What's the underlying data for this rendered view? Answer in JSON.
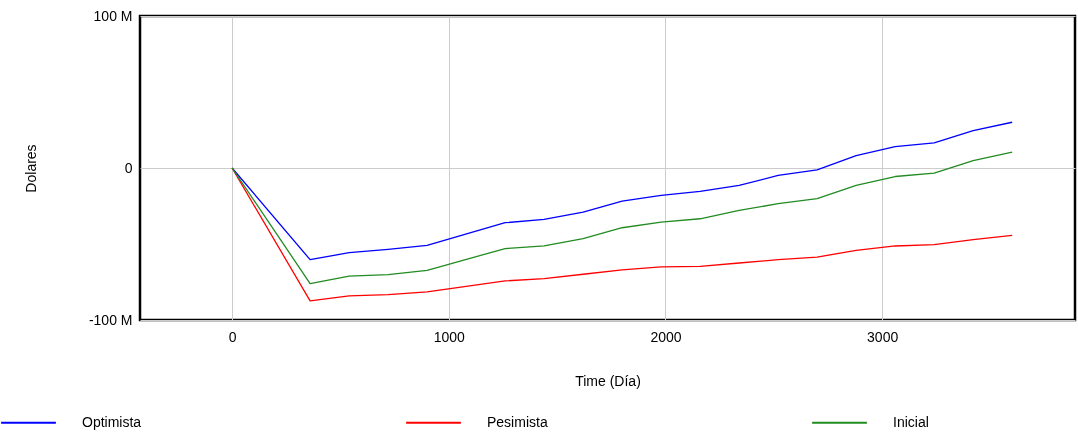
{
  "chart_data": {
    "type": "line",
    "xlabel": "Time (Día)",
    "ylabel": "Dolares",
    "x": [
      0,
      360,
      540,
      720,
      900,
      1260,
      1440,
      1620,
      1800,
      1980,
      2160,
      2340,
      2520,
      2700,
      2880,
      3060,
      3240,
      3420,
      3600
    ],
    "series": [
      {
        "name": "Optimista",
        "color": "#0000ff",
        "values": [
          0,
          -60.3,
          -55.7,
          -53.5,
          -50.9,
          -36,
          -33.8,
          -29,
          -21.8,
          -18,
          -15.4,
          -11.5,
          -4.9,
          -1.2,
          8.2,
          14.1,
          16.5,
          24.6,
          30.1
        ]
      },
      {
        "name": "Pesimista",
        "color": "#ff0000",
        "values": [
          0,
          -87.4,
          -84.1,
          -83.3,
          -81.5,
          -74.3,
          -72.8,
          -69.9,
          -67,
          -65,
          -64.7,
          -62.5,
          -60.3,
          -58.6,
          -54.2,
          -51.3,
          -50.4,
          -47.1,
          -44.3
        ]
      },
      {
        "name": "Inicial",
        "color": "#228b22",
        "values": [
          0,
          -76,
          -71.2,
          -70.1,
          -67.3,
          -53,
          -51.3,
          -46.5,
          -39.3,
          -35.6,
          -33.4,
          -27.9,
          -23.5,
          -20.2,
          -11.5,
          -5.6,
          -3.4,
          4.9,
          10.4
        ]
      }
    ],
    "xlim": [
      -425,
      3890
    ],
    "xticks": [
      0,
      1000,
      2000,
      3000
    ],
    "ylim": [
      -100,
      100
    ],
    "yticks": [
      {
        "value": -100,
        "label": "-100 M"
      },
      {
        "value": 0,
        "label": "0"
      },
      {
        "value": 100,
        "label": "100 M"
      }
    ],
    "grid": true,
    "legend": "bottom",
    "marker": "none",
    "line_style": "solid"
  }
}
